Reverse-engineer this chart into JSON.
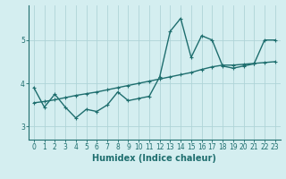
{
  "xlabel": "Humidex (Indice chaleur)",
  "background_color": "#d4eef0",
  "grid_color": "#afd4d8",
  "line_color": "#1e6e6e",
  "x_values": [
    0,
    1,
    2,
    3,
    4,
    5,
    6,
    7,
    8,
    9,
    10,
    11,
    12,
    13,
    14,
    15,
    16,
    17,
    18,
    19,
    20,
    21,
    22,
    23
  ],
  "y_data": [
    3.9,
    3.45,
    3.75,
    3.45,
    3.2,
    3.4,
    3.35,
    3.5,
    3.8,
    3.6,
    3.65,
    3.7,
    4.15,
    5.2,
    5.5,
    4.6,
    5.1,
    5.0,
    4.4,
    4.35,
    4.4,
    4.45,
    5.0,
    5.0
  ],
  "y_trend": [
    3.55,
    3.58,
    3.62,
    3.67,
    3.72,
    3.76,
    3.8,
    3.85,
    3.9,
    3.95,
    4.0,
    4.05,
    4.1,
    4.15,
    4.2,
    4.25,
    4.32,
    4.38,
    4.42,
    4.42,
    4.44,
    4.46,
    4.48,
    4.5
  ],
  "ylim": [
    2.7,
    5.8
  ],
  "yticks": [
    3,
    4,
    5
  ],
  "xticks": [
    0,
    1,
    2,
    3,
    4,
    5,
    6,
    7,
    8,
    9,
    10,
    11,
    12,
    13,
    14,
    15,
    16,
    17,
    18,
    19,
    20,
    21,
    22,
    23
  ],
  "linewidth": 1.0,
  "markersize": 3.5
}
